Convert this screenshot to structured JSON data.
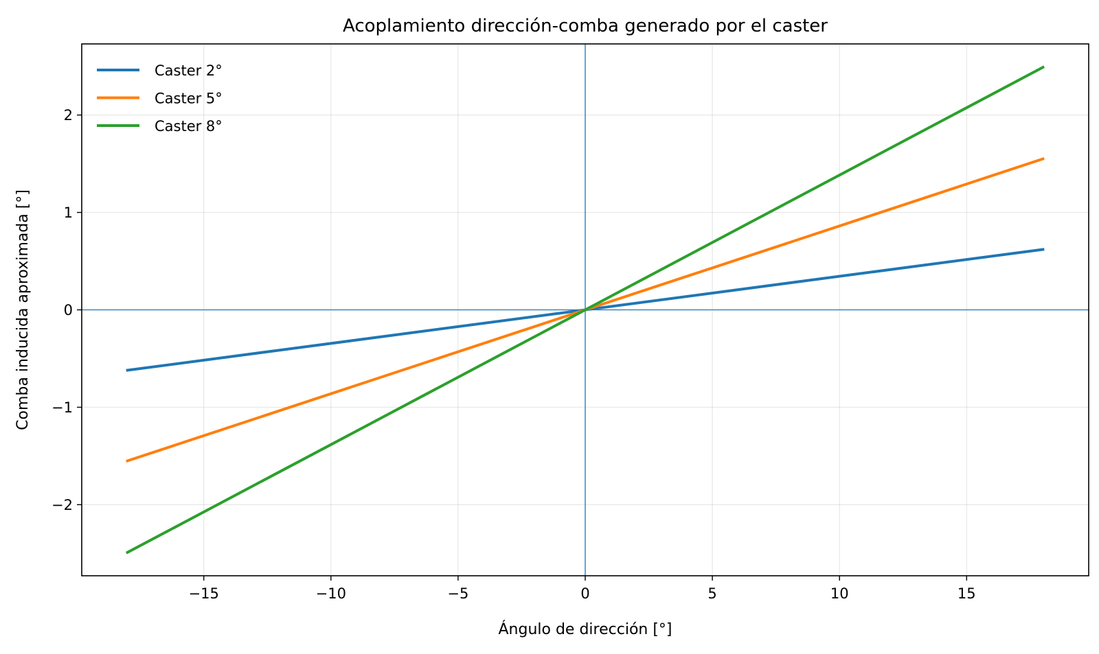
{
  "chart_data": {
    "type": "line",
    "title": "Acoplamiento dirección-comba generado por el caster",
    "xlabel": "Ángulo de dirección [°]",
    "ylabel": "Comba inducida aproximada [°]",
    "xlim": [
      -19.8,
      19.8
    ],
    "ylim": [
      -2.73,
      2.73
    ],
    "x_ticks": [
      -15,
      -10,
      -5,
      0,
      5,
      10,
      15
    ],
    "x_tick_labels": [
      "−15",
      "−10",
      "−5",
      "0",
      "5",
      "10",
      "15"
    ],
    "y_ticks": [
      -2,
      -1,
      0,
      1,
      2
    ],
    "y_tick_labels": [
      "−2",
      "−1",
      "0",
      "1",
      "2"
    ],
    "grid": true,
    "legend_position": "top-left",
    "reference_lines": {
      "x": 0,
      "y": 0,
      "color": "#1f77b4"
    },
    "series": [
      {
        "name": "Caster 2°",
        "color": "#1f77b4",
        "x": [
          -18,
          18
        ],
        "y": [
          -0.62,
          0.62
        ]
      },
      {
        "name": "Caster 5°",
        "color": "#ff7f0e",
        "x": [
          -18,
          18
        ],
        "y": [
          -1.55,
          1.55
        ]
      },
      {
        "name": "Caster 8°",
        "color": "#2ca02c",
        "x": [
          -18,
          18
        ],
        "y": [
          -2.49,
          2.49
        ]
      }
    ]
  }
}
